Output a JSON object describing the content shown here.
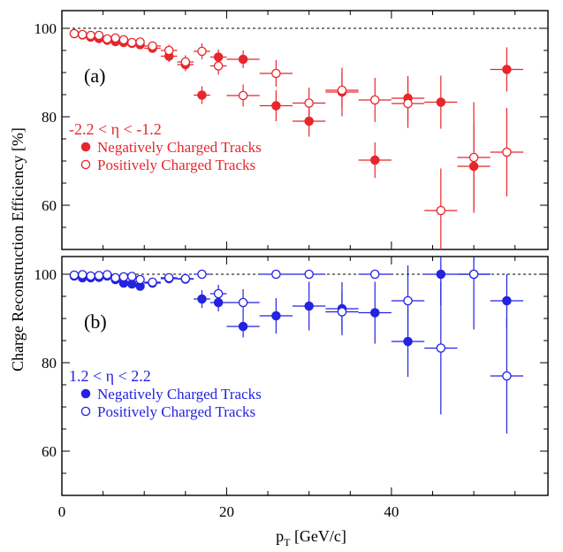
{
  "chart_data": {
    "type": "scatter",
    "xlabel": "p",
    "xlabel_sub": "T",
    "xlabel_unit": " [GeV/c]",
    "ylabel": "Charge Reconstruction Efficiency [%]",
    "xlim": [
      0,
      59
    ],
    "x_ticks": [
      0,
      20,
      40
    ],
    "reference_line_y": 100,
    "panels": [
      {
        "label": "(a)",
        "color": "#e8262b",
        "ylim": [
          50,
          104
        ],
        "y_ticks": [
          60,
          80,
          100
        ],
        "region_text": "-2.2 < η < -1.2",
        "series": [
          {
            "name": "Negatively Charged Tracks",
            "marker": "filled",
            "points": [
              {
                "x": 1.5,
                "y": 98.8,
                "ex": 0.5,
                "ey": 0.5
              },
              {
                "x": 2.5,
                "y": 98.5,
                "ex": 0.5,
                "ey": 0.5
              },
              {
                "x": 3.5,
                "y": 98.0,
                "ex": 0.5,
                "ey": 0.6
              },
              {
                "x": 4.5,
                "y": 97.7,
                "ex": 0.5,
                "ey": 0.6
              },
              {
                "x": 5.5,
                "y": 97.3,
                "ex": 0.5,
                "ey": 0.7
              },
              {
                "x": 6.5,
                "y": 97.0,
                "ex": 0.5,
                "ey": 0.7
              },
              {
                "x": 7.5,
                "y": 96.8,
                "ex": 0.5,
                "ey": 0.8
              },
              {
                "x": 8.5,
                "y": 96.6,
                "ex": 0.5,
                "ey": 0.9
              },
              {
                "x": 9.5,
                "y": 96.3,
                "ex": 0.5,
                "ey": 1.0
              },
              {
                "x": 11,
                "y": 95.5,
                "ex": 1.0,
                "ey": 1.0
              },
              {
                "x": 13,
                "y": 93.7,
                "ex": 1.0,
                "ey": 1.3
              },
              {
                "x": 15,
                "y": 91.8,
                "ex": 1.0,
                "ey": 1.5
              },
              {
                "x": 17,
                "y": 84.9,
                "ex": 1.0,
                "ey": 2.0
              },
              {
                "x": 19,
                "y": 93.5,
                "ex": 1.0,
                "ey": 1.7
              },
              {
                "x": 22,
                "y": 93.0,
                "ex": 2.0,
                "ey": 2.0
              },
              {
                "x": 26,
                "y": 82.5,
                "ex": 2.0,
                "ey": 3.5
              },
              {
                "x": 30,
                "y": 79.0,
                "ex": 2.0,
                "ey": 3.5
              },
              {
                "x": 34,
                "y": 85.6,
                "ex": 2.0,
                "ey": 5.5
              },
              {
                "x": 38,
                "y": 70.2,
                "ex": 2.0,
                "ey": 4.0
              },
              {
                "x": 42,
                "y": 84.2,
                "ex": 2.0,
                "ey": 5.0
              },
              {
                "x": 46,
                "y": 83.3,
                "ex": 2.0,
                "ey": 6.0
              },
              {
                "x": 50,
                "y": 68.8,
                "ex": 2.0,
                "ey": 10.0
              },
              {
                "x": 54,
                "y": 90.7,
                "ex": 2.0,
                "ey": 5.0
              }
            ]
          },
          {
            "name": "Positively Charged Tracks",
            "marker": "open",
            "points": [
              {
                "x": 1.5,
                "y": 98.8,
                "ex": 0.5,
                "ey": 0.5
              },
              {
                "x": 2.5,
                "y": 98.6,
                "ex": 0.5,
                "ey": 0.5
              },
              {
                "x": 3.5,
                "y": 98.4,
                "ex": 0.5,
                "ey": 0.6
              },
              {
                "x": 4.5,
                "y": 98.4,
                "ex": 0.5,
                "ey": 0.6
              },
              {
                "x": 5.5,
                "y": 97.6,
                "ex": 0.5,
                "ey": 0.7
              },
              {
                "x": 6.5,
                "y": 97.8,
                "ex": 0.5,
                "ey": 0.7
              },
              {
                "x": 7.5,
                "y": 97.4,
                "ex": 0.5,
                "ey": 0.8
              },
              {
                "x": 8.5,
                "y": 96.8,
                "ex": 0.5,
                "ey": 0.9
              },
              {
                "x": 9.5,
                "y": 96.9,
                "ex": 0.5,
                "ey": 1.0
              },
              {
                "x": 11,
                "y": 96.0,
                "ex": 1.0,
                "ey": 1.0
              },
              {
                "x": 13,
                "y": 95.0,
                "ex": 1.0,
                "ey": 1.3
              },
              {
                "x": 15,
                "y": 92.4,
                "ex": 1.0,
                "ey": 1.5
              },
              {
                "x": 17,
                "y": 94.8,
                "ex": 1.0,
                "ey": 1.8
              },
              {
                "x": 19,
                "y": 91.5,
                "ex": 1.0,
                "ey": 2.0
              },
              {
                "x": 22,
                "y": 84.8,
                "ex": 2.0,
                "ey": 2.5
              },
              {
                "x": 26,
                "y": 89.8,
                "ex": 2.0,
                "ey": 3.0
              },
              {
                "x": 30,
                "y": 83.1,
                "ex": 2.0,
                "ey": 3.5
              },
              {
                "x": 34,
                "y": 86.0,
                "ex": 2.0,
                "ey": 4.0
              },
              {
                "x": 38,
                "y": 83.8,
                "ex": 2.0,
                "ey": 5.0
              },
              {
                "x": 42,
                "y": 83.0,
                "ex": 2.0,
                "ey": 5.5
              },
              {
                "x": 46,
                "y": 58.8,
                "ex": 2.0,
                "ey": 9.5
              },
              {
                "x": 50,
                "y": 70.8,
                "ex": 2.0,
                "ey": 12.5
              },
              {
                "x": 54,
                "y": 72.0,
                "ex": 2.0,
                "ey": 10.0
              }
            ]
          }
        ]
      },
      {
        "label": "(b)",
        "color": "#2323e0",
        "ylim": [
          50,
          104
        ],
        "y_ticks": [
          60,
          80,
          100
        ],
        "region_text": "1.2 < η < 2.2",
        "series": [
          {
            "name": "Negatively Charged Tracks",
            "marker": "filled",
            "points": [
              {
                "x": 1.5,
                "y": 99.6,
                "ex": 0.5,
                "ey": 0.5
              },
              {
                "x": 2.5,
                "y": 99.2,
                "ex": 0.5,
                "ey": 0.5
              },
              {
                "x": 3.5,
                "y": 99.2,
                "ex": 0.5,
                "ey": 0.6
              },
              {
                "x": 4.5,
                "y": 99.3,
                "ex": 0.5,
                "ey": 0.6
              },
              {
                "x": 5.5,
                "y": 99.6,
                "ex": 0.5,
                "ey": 0.7
              },
              {
                "x": 6.5,
                "y": 98.8,
                "ex": 0.5,
                "ey": 0.8
              },
              {
                "x": 7.5,
                "y": 98.0,
                "ex": 0.5,
                "ey": 0.9
              },
              {
                "x": 8.5,
                "y": 97.8,
                "ex": 0.5,
                "ey": 1.0
              },
              {
                "x": 9.5,
                "y": 97.3,
                "ex": 0.5,
                "ey": 1.0
              },
              {
                "x": 11,
                "y": 98.0,
                "ex": 1.0,
                "ey": 1.0
              },
              {
                "x": 13,
                "y": 99.0,
                "ex": 1.0,
                "ey": 1.0
              },
              {
                "x": 15,
                "y": 98.9,
                "ex": 1.0,
                "ey": 1.0
              },
              {
                "x": 17,
                "y": 94.4,
                "ex": 1.0,
                "ey": 2.0
              },
              {
                "x": 19,
                "y": 93.6,
                "ex": 1.0,
                "ey": 2.0
              },
              {
                "x": 22,
                "y": 88.2,
                "ex": 2.0,
                "ey": 2.5
              },
              {
                "x": 26,
                "y": 90.6,
                "ex": 2.0,
                "ey": 4.0
              },
              {
                "x": 30,
                "y": 92.8,
                "ex": 2.0,
                "ey": 5.5
              },
              {
                "x": 34,
                "y": 92.2,
                "ex": 2.0,
                "ey": 6.0
              },
              {
                "x": 38,
                "y": 91.3,
                "ex": 2.0,
                "ey": 7.0
              },
              {
                "x": 42,
                "y": 84.8,
                "ex": 2.0,
                "ey": 8.0
              },
              {
                "x": 46,
                "y": 100.0,
                "ex": 2.0,
                "ey": 7.0
              },
              {
                "x": 50,
                "y": 100.0,
                "ex": 2.0,
                "ey": 12.5
              },
              {
                "x": 54,
                "y": 94.0,
                "ex": 2.0,
                "ey": 6.0
              }
            ]
          },
          {
            "name": "Positively Charged Tracks",
            "marker": "open",
            "points": [
              {
                "x": 1.5,
                "y": 99.8,
                "ex": 0.5,
                "ey": 0.4
              },
              {
                "x": 2.5,
                "y": 99.9,
                "ex": 0.5,
                "ey": 0.4
              },
              {
                "x": 3.5,
                "y": 99.6,
                "ex": 0.5,
                "ey": 0.5
              },
              {
                "x": 4.5,
                "y": 99.7,
                "ex": 0.5,
                "ey": 0.5
              },
              {
                "x": 5.5,
                "y": 99.9,
                "ex": 0.5,
                "ey": 0.5
              },
              {
                "x": 6.5,
                "y": 99.2,
                "ex": 0.5,
                "ey": 0.6
              },
              {
                "x": 7.5,
                "y": 99.4,
                "ex": 0.5,
                "ey": 0.7
              },
              {
                "x": 8.5,
                "y": 99.5,
                "ex": 0.5,
                "ey": 0.8
              },
              {
                "x": 9.5,
                "y": 98.8,
                "ex": 0.5,
                "ey": 0.9
              },
              {
                "x": 11,
                "y": 98.2,
                "ex": 1.0,
                "ey": 1.0
              },
              {
                "x": 13,
                "y": 99.2,
                "ex": 1.0,
                "ey": 0.8
              },
              {
                "x": 15,
                "y": 99.0,
                "ex": 1.0,
                "ey": 0.8
              },
              {
                "x": 17,
                "y": 100.0,
                "ex": 1.0,
                "ey": 0.8
              },
              {
                "x": 19,
                "y": 95.6,
                "ex": 1.0,
                "ey": 2.0
              },
              {
                "x": 22,
                "y": 93.6,
                "ex": 2.0,
                "ey": 3.0
              },
              {
                "x": 26,
                "y": 100.0,
                "ex": 2.0,
                "ey": 1.0
              },
              {
                "x": 30,
                "y": 100.0,
                "ex": 2.0,
                "ey": 1.0
              },
              {
                "x": 34,
                "y": 91.5,
                "ex": 2.0,
                "ey": 4.5
              },
              {
                "x": 38,
                "y": 100.0,
                "ex": 2.0,
                "ey": 1.0
              },
              {
                "x": 42,
                "y": 94.0,
                "ex": 2.0,
                "ey": 8.0
              },
              {
                "x": 46,
                "y": 83.3,
                "ex": 2.0,
                "ey": 15.0
              },
              {
                "x": 50,
                "y": 100.0,
                "ex": 2.0,
                "ey": 1.0
              },
              {
                "x": 54,
                "y": 77.0,
                "ex": 2.0,
                "ey": 13.0
              }
            ]
          }
        ]
      }
    ]
  }
}
